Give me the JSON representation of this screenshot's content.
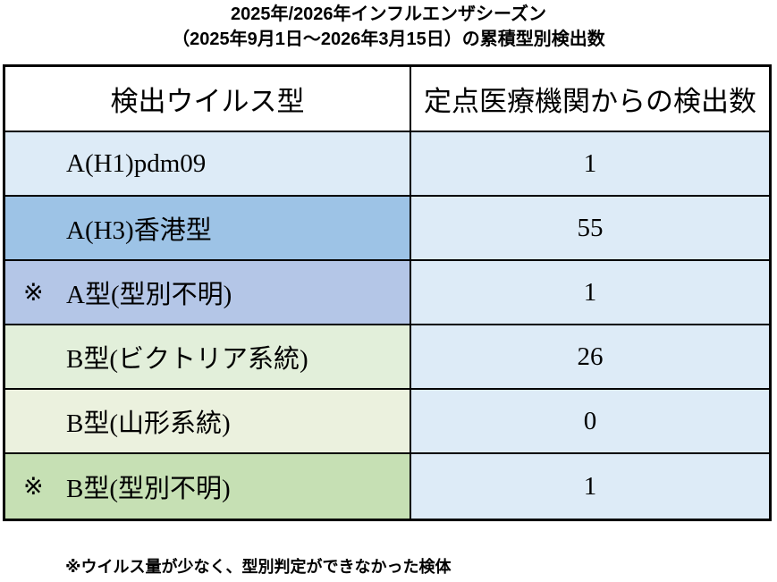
{
  "title": {
    "line1": "2025年/2026年インフルエンザシーズン",
    "line2": "（2025年9月1日～2026年3月15日）の累積型別検出数"
  },
  "table": {
    "headers": {
      "virus_type": "検出ウイルス型",
      "detection_count": "定点医療機関からの検出数"
    },
    "value_column_color": "#DDEBF7",
    "border_color": "#000000",
    "rows": [
      {
        "marker": "",
        "label": "A(H1)pdm09",
        "value": "1",
        "row_color": "#DDEBF7"
      },
      {
        "marker": "",
        "label": "A(H3)香港型",
        "value": "55",
        "row_color": "#9DC3E6"
      },
      {
        "marker": "※",
        "label": "A型(型別不明)",
        "value": "1",
        "row_color": "#B4C6E7"
      },
      {
        "marker": "",
        "label": "B型(ビクトリア系統)",
        "value": "26",
        "row_color": "#E2EFDA"
      },
      {
        "marker": "",
        "label": "B型(山形系統)",
        "value": "0",
        "row_color": "#EBF1DE"
      },
      {
        "marker": "※",
        "label": "B型(型別不明)",
        "value": "1",
        "row_color": "#C6E0B4"
      }
    ]
  },
  "footnote": "※ウイルス量が少なく、型別判定ができなかった検体",
  "chart_data": {
    "type": "table",
    "title": "2025年/2026年インフルエンザシーズン（2025年9月1日～2026年3月15日）の累積型別検出数",
    "columns": [
      "検出ウイルス型",
      "定点医療機関からの検出数"
    ],
    "rows": [
      [
        "A(H1)pdm09",
        1
      ],
      [
        "A(H3)香港型",
        55
      ],
      [
        "※ A型(型別不明)",
        1
      ],
      [
        "B型(ビクトリア系統)",
        26
      ],
      [
        "B型(山形系統)",
        0
      ],
      [
        "※ B型(型別不明)",
        1
      ]
    ],
    "footnote": "※ウイルス量が少なく、型別判定ができなかった検体"
  }
}
